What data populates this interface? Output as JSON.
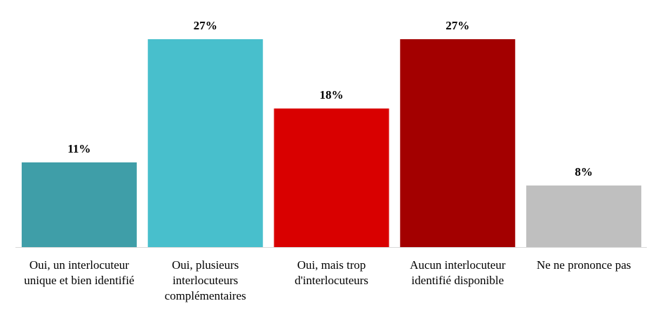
{
  "chart_data": {
    "type": "bar",
    "categories": [
      "Oui, un interlocuteur unique et bien identifié",
      "Oui, plusieurs interlocuteurs complémentaires",
      "Oui, mais trop d'interlocuteurs",
      "Aucun interlocuteur identifié disponible",
      "Ne ne prononce pas"
    ],
    "values": [
      11,
      27,
      18,
      27,
      8
    ],
    "value_labels": [
      "11%",
      "27%",
      "18%",
      "27%",
      "8%"
    ],
    "colors": [
      "#3f9ea8",
      "#48bfcc",
      "#d90000",
      "#a30000",
      "#bfbfbf"
    ]
  }
}
